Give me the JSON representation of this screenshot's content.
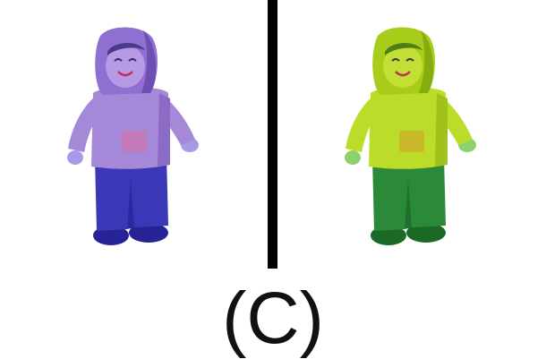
{
  "caption": "(C)",
  "left_figure": {
    "name": "toy-figure-blue-tint",
    "hood": "#8f6fd0",
    "hood_shadow": "#6c4fb1",
    "face": "#b79ae6",
    "hair": "#4b3a8c",
    "sweater": "#a688d8",
    "sweater_shadow": "#8b6bc5",
    "pocket": "#c27ab8",
    "hands": "#a99ae8",
    "pants": "#3a38b6",
    "pants_shadow": "#2a27a0",
    "shoes": "#262396"
  },
  "right_figure": {
    "name": "toy-figure-green-tint",
    "hood": "#a8cc1a",
    "hood_shadow": "#86ac10",
    "face": "#c2e034",
    "hair": "#4f7d16",
    "sweater": "#bcdc2a",
    "sweater_shadow": "#9fc21c",
    "pocket": "#c8b82a",
    "hands": "#8ed06b",
    "pants": "#2b8a3a",
    "pants_shadow": "#1e6e2c",
    "shoes": "#1a6a26"
  }
}
